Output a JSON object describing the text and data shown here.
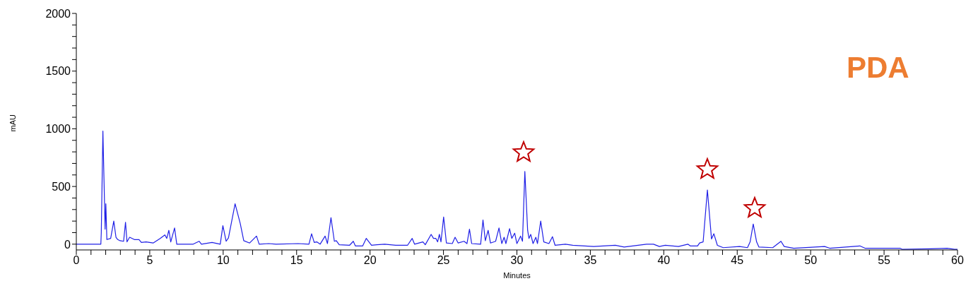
{
  "chart_data": {
    "type": "line",
    "xlabel": "Minutes",
    "ylabel": "mAU",
    "annotations": [
      "PDA"
    ],
    "marker": "none",
    "line_style": "solid",
    "xlim": [
      0,
      60
    ],
    "ylim": [
      -50,
      2000
    ],
    "xticks": [
      0,
      {
        "value": 1,
        "label": null
      },
      {
        "value": 2,
        "label": null
      },
      {
        "value": 3,
        "label": null
      },
      {
        "value": 4,
        "label": null
      },
      5,
      {
        "value": 6,
        "label": null
      },
      {
        "value": 7,
        "label": null
      },
      {
        "value": 8,
        "label": null
      },
      {
        "value": 9,
        "label": null
      },
      10,
      {
        "value": 11,
        "label": null
      },
      {
        "value": 12,
        "label": null
      },
      {
        "value": 13,
        "label": null
      },
      {
        "value": 14,
        "label": null
      },
      15,
      {
        "value": 16,
        "label": null
      },
      {
        "value": 17,
        "label": null
      },
      {
        "value": 18,
        "label": null
      },
      {
        "value": 19,
        "label": null
      },
      20,
      {
        "value": 21,
        "label": null
      },
      {
        "value": 22,
        "label": null
      },
      {
        "value": 23,
        "label": null
      },
      {
        "value": 24,
        "label": null
      },
      25,
      {
        "value": 26,
        "label": null
      },
      {
        "value": 27,
        "label": null
      },
      {
        "value": 28,
        "label": null
      },
      {
        "value": 29,
        "label": null
      },
      30,
      {
        "value": 31,
        "label": null
      },
      {
        "value": 32,
        "label": null
      },
      {
        "value": 33,
        "label": null
      },
      {
        "value": 34,
        "label": null
      },
      35,
      {
        "value": 36,
        "label": null
      },
      {
        "value": 37,
        "label": null
      },
      {
        "value": 38,
        "label": null
      },
      {
        "value": 39,
        "label": null
      },
      40,
      {
        "value": 41,
        "label": null
      },
      {
        "value": 42,
        "label": null
      },
      {
        "value": 43,
        "label": null
      },
      {
        "value": 44,
        "label": null
      },
      45,
      {
        "value": 46,
        "label": null
      },
      {
        "value": 47,
        "label": null
      },
      {
        "value": 48,
        "label": null
      },
      {
        "value": 49,
        "label": null
      },
      50,
      {
        "value": 51,
        "label": null
      },
      {
        "value": 52,
        "label": null
      },
      {
        "value": 53,
        "label": null
      },
      {
        "value": 54,
        "label": null
      },
      55,
      {
        "value": 56,
        "label": null
      },
      {
        "value": 57,
        "label": null
      },
      {
        "value": 58,
        "label": null
      },
      {
        "value": 59,
        "label": null
      },
      60
    ],
    "yticks": [
      0,
      {
        "value": 100,
        "label": null
      },
      {
        "value": 200,
        "label": null
      },
      {
        "value": 300,
        "label": null
      },
      {
        "value": 400,
        "label": null
      },
      500,
      {
        "value": 600,
        "label": null
      },
      {
        "value": 700,
        "label": null
      },
      {
        "value": 800,
        "label": null
      },
      {
        "value": 900,
        "label": null
      },
      1000,
      {
        "value": 1100,
        "label": null
      },
      {
        "value": 1200,
        "label": null
      },
      {
        "value": 1300,
        "label": null
      },
      {
        "value": 1400,
        "label": null
      },
      1500,
      {
        "value": 1600,
        "label": null
      },
      {
        "value": 1700,
        "label": null
      },
      {
        "value": 1800,
        "label": null
      },
      {
        "value": 1900,
        "label": null
      },
      2000
    ],
    "series": [
      {
        "color": "#2020e6",
        "x": [
          0,
          1.67,
          1.7,
          1.81,
          1.96,
          2.01,
          2.08,
          2.34,
          2.55,
          2.7,
          2.82,
          2.98,
          3.22,
          3.35,
          3.45,
          3.63,
          3.95,
          4.27,
          4.43,
          4.75,
          5.23,
          5.71,
          6.03,
          6.16,
          6.3,
          6.43,
          6.69,
          6.84,
          7.96,
          8.36,
          8.52,
          9.24,
          9.8,
          9.98,
          10.2,
          10.36,
          10.81,
          11.16,
          11.4,
          11.8,
          12.27,
          12.45,
          13.1,
          13.6,
          15.1,
          15.84,
          16.02,
          16.2,
          16.37,
          16.6,
          16.94,
          17.1,
          17.34,
          17.57,
          17.7,
          17.9,
          18.6,
          18.86,
          19.0,
          19.5,
          19.74,
          20.1,
          20.47,
          21.0,
          21.75,
          22.55,
          22.87,
          23.03,
          23.6,
          23.76,
          24.16,
          24.32,
          24.48,
          24.6,
          24.72,
          24.83,
          25.01,
          25.2,
          25.6,
          25.79,
          26.0,
          26.4,
          26.6,
          26.77,
          26.92,
          27.53,
          27.69,
          27.85,
          28.04,
          28.2,
          28.55,
          28.78,
          28.97,
          29.13,
          29.25,
          29.5,
          29.65,
          29.85,
          30.0,
          30.25,
          30.38,
          30.54,
          30.73,
          30.82,
          30.94,
          31.1,
          31.29,
          31.4,
          31.62,
          31.83,
          32.18,
          32.42,
          32.6,
          33.3,
          33.8,
          35.23,
          36.7,
          37.3,
          38.83,
          39.3,
          39.7,
          40.1,
          41.0,
          41.64,
          41.8,
          42.3,
          42.44,
          42.68,
          42.97,
          43.25,
          43.41,
          43.65,
          44.05,
          45.16,
          45.7,
          45.88,
          46.09,
          46.32,
          46.48,
          47.42,
          47.98,
          48.2,
          48.85,
          50.95,
          51.3,
          53.35,
          53.7,
          56.08,
          56.25,
          58.17,
          59.3,
          59.8,
          60
        ],
        "values": [
          0,
          0,
          100,
          980,
          130,
          350,
          40,
          50,
          200,
          60,
          40,
          30,
          25,
          190,
          20,
          60,
          40,
          40,
          15,
          20,
          10,
          50,
          80,
          50,
          120,
          20,
          140,
          0,
          0,
          25,
          0,
          15,
          0,
          160,
          25,
          55,
          350,
          180,
          30,
          10,
          70,
          0,
          5,
          0,
          5,
          0,
          90,
          15,
          20,
          0,
          70,
          5,
          230,
          25,
          30,
          -5,
          -10,
          25,
          -15,
          -15,
          50,
          -10,
          -5,
          0,
          -10,
          -10,
          50,
          0,
          20,
          -5,
          85,
          50,
          50,
          20,
          85,
          20,
          235,
          10,
          5,
          60,
          10,
          25,
          5,
          130,
          5,
          0,
          210,
          30,
          120,
          10,
          25,
          140,
          5,
          60,
          5,
          135,
          50,
          95,
          5,
          70,
          25,
          630,
          120,
          50,
          85,
          5,
          60,
          5,
          200,
          20,
          5,
          65,
          -10,
          0,
          -10,
          -20,
          -10,
          -25,
          0,
          0,
          -20,
          -10,
          -20,
          0,
          -15,
          -15,
          10,
          20,
          470,
          45,
          90,
          -10,
          -30,
          -20,
          -30,
          20,
          175,
          20,
          -25,
          -30,
          25,
          -20,
          -35,
          -20,
          -35,
          -15,
          -35,
          -35,
          -45,
          -40,
          -35,
          -45,
          -45
        ]
      }
    ]
  }
}
